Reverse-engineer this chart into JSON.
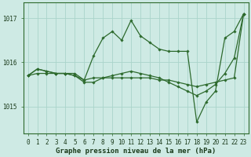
{
  "xlabel": "Graphe pression niveau de la mer (hPa)",
  "x_values": [
    0,
    1,
    2,
    3,
    4,
    5,
    6,
    7,
    8,
    9,
    10,
    11,
    12,
    13,
    14,
    15,
    16,
    17,
    18,
    19,
    20,
    21,
    22,
    23
  ],
  "line_spike": [
    1015.7,
    1015.85,
    1015.8,
    1015.75,
    1015.75,
    1015.75,
    1015.6,
    1016.15,
    1016.55,
    1016.7,
    1016.5,
    1016.95,
    1016.6,
    1016.45,
    1016.3,
    1016.25,
    1016.25,
    1016.25,
    1014.65,
    1015.1,
    1015.35,
    1016.55,
    1016.7,
    1017.1
  ],
  "line_trend": [
    1015.7,
    1015.85,
    1015.8,
    1015.75,
    1015.75,
    1015.7,
    1015.55,
    1015.55,
    1015.65,
    1015.7,
    1015.75,
    1015.8,
    1015.75,
    1015.7,
    1015.65,
    1015.55,
    1015.45,
    1015.35,
    1015.25,
    1015.35,
    1015.5,
    1015.75,
    1016.1,
    1017.1
  ],
  "line_flat": [
    1015.7,
    1015.75,
    1015.75,
    1015.75,
    1015.75,
    1015.7,
    1015.6,
    1015.65,
    1015.65,
    1015.65,
    1015.65,
    1015.65,
    1015.65,
    1015.65,
    1015.6,
    1015.6,
    1015.55,
    1015.5,
    1015.45,
    1015.5,
    1015.55,
    1015.6,
    1015.65,
    1017.1
  ],
  "bg_color": "#ceeae4",
  "line_color": "#2d6a2d",
  "grid_color": "#aad4ca",
  "ylim": [
    1014.4,
    1017.35
  ],
  "yticks": [
    1015.0,
    1016.0,
    1017.0
  ],
  "ytick_labels": [
    "1015",
    "1016",
    "1017"
  ],
  "xlabel_fontsize": 6.5,
  "tick_fontsize": 5.5
}
